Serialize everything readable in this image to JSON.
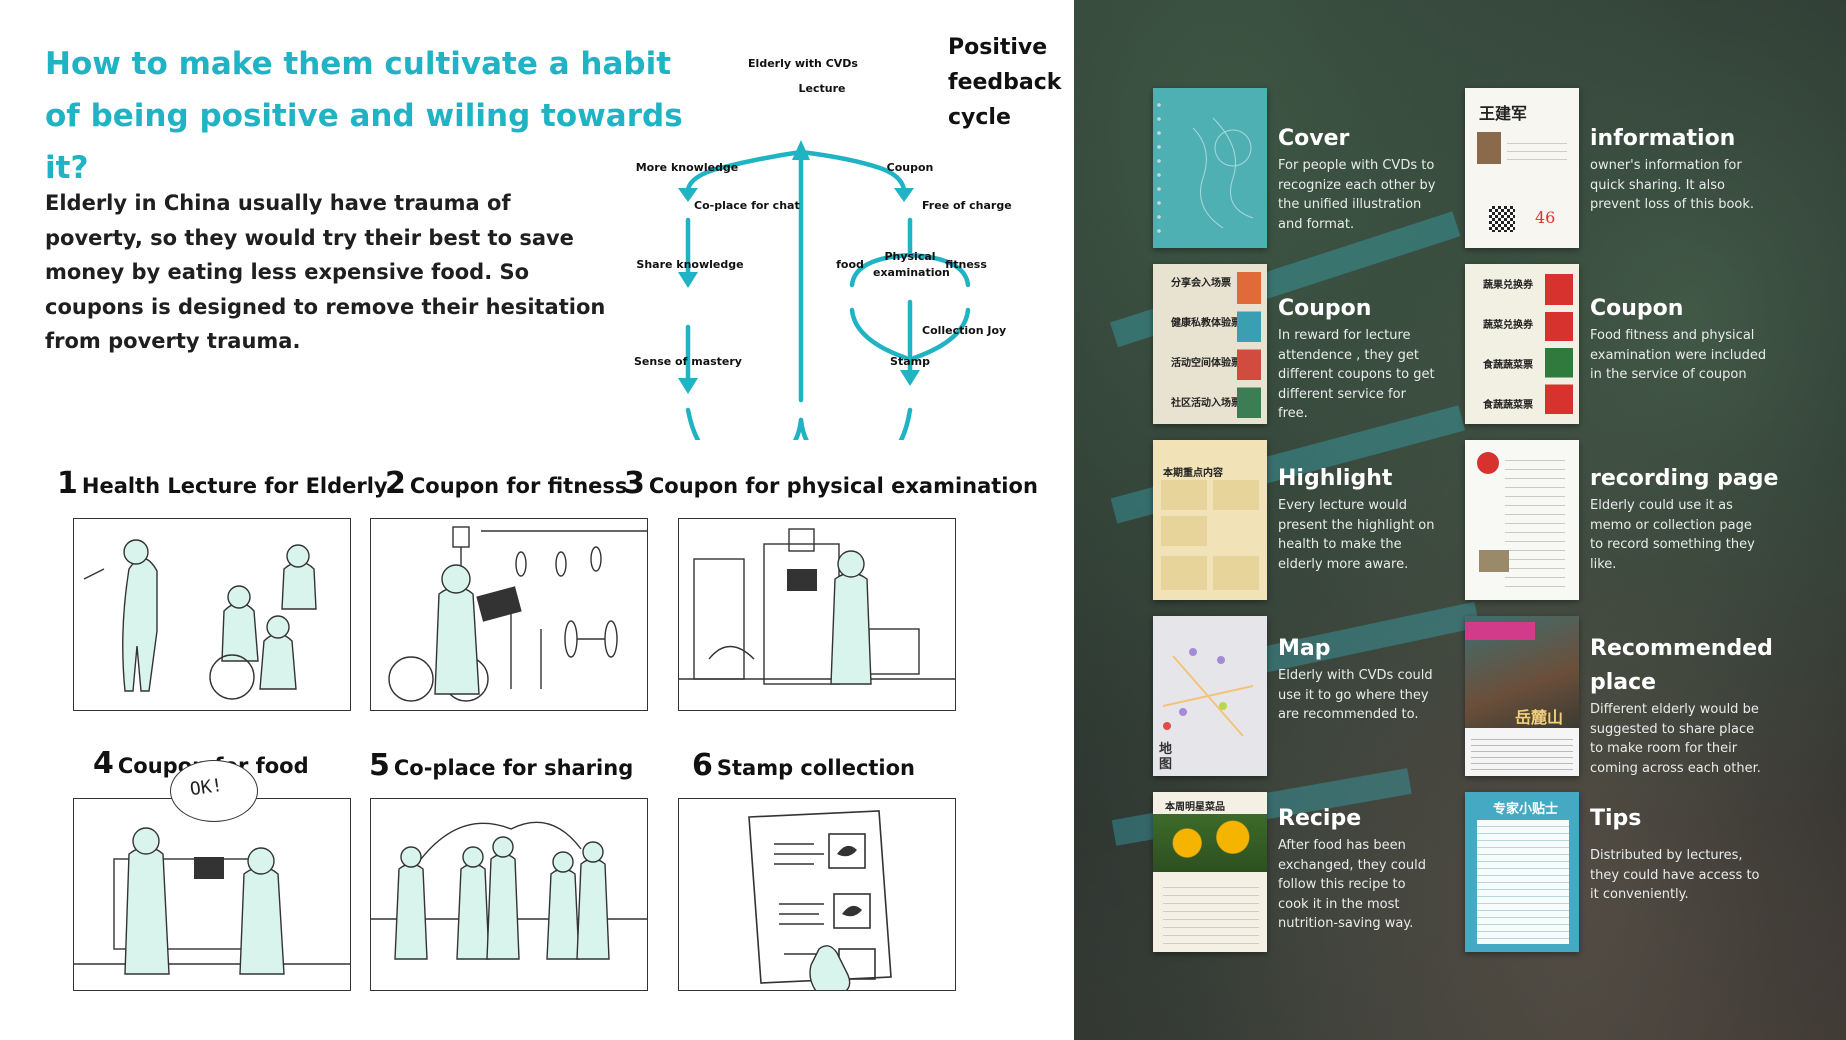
{
  "headline": "How to make them cultivate a habit of being positive and wiling towards it?",
  "intro": "Elderly in China usually have trauma of poverty, so they would try their best to save money by eating less expensive food. So coupons is designed to remove their hesitation from poverty trauma.",
  "diagram": {
    "title": "Positive feedback cycle",
    "nodes": {
      "root": "Elderly with CVDs",
      "lecture": "Lecture",
      "more_knowledge": "More knowledge",
      "co_place": "Co-place for chat",
      "share_knowledge": "Share knowledge",
      "mastery": "Sense of mastery",
      "coupon": "Coupon",
      "free": "Free of charge",
      "food": "food",
      "physical": "Physical examination",
      "fitness": "fitness",
      "joy": "Collection Joy",
      "stamp": "Stamp"
    }
  },
  "steps": [
    {
      "num": "1",
      "label": "Health Lecture for Elderly"
    },
    {
      "num": "2",
      "label": "Coupon for fitness"
    },
    {
      "num": "3",
      "label": "Coupon for physical examination"
    },
    {
      "num": "4",
      "label": "Coupon for food"
    },
    {
      "num": "5",
      "label": "Co-place for sharing"
    },
    {
      "num": "6",
      "label": "Stamp collection"
    }
  ],
  "speech_bubble": "OK!",
  "cards": [
    {
      "title": "Cover",
      "desc": "For people with CVDs to recognize each other by the unified illustration and format."
    },
    {
      "title": "information",
      "desc": "owner's information for quick sharing. It also prevent loss of this book."
    },
    {
      "title": "Coupon",
      "desc": "In reward for lecture attendence , they get different coupons to get different service for free."
    },
    {
      "title": "Coupon",
      "desc": "Food fitness and physical examination were included in the service of coupon"
    },
    {
      "title": "Highlight",
      "desc": "Every lecture would present the highlight on health to make the elderly more aware."
    },
    {
      "title": "recording page",
      "desc": "Elderly could use it as memo or collection page to record something they like."
    },
    {
      "title": "Map",
      "desc": "Elderly with CVDs could use it to go where they are recommended to."
    },
    {
      "title": "Recommended place",
      "desc": "Different elderly would be suggested to share place to make room for their coming across each other."
    },
    {
      "title": "Recipe",
      "desc": "After food has been exchanged, they could follow this recipe to cook it in the most nutrition-saving way."
    },
    {
      "title": "Tips",
      "desc": "Distributed by lectures, they could have access to it conveniently."
    }
  ],
  "thumbs": {
    "info_name": "王建军",
    "info_number": "46",
    "coupon_labels": [
      "分享会入场票",
      "健康私教体验票",
      "活动空间体验票",
      "社区活动入场票"
    ],
    "veg_labels": [
      "蔬果兑换券",
      "蔬菜兑换券",
      "食蔬蔬菜票",
      "食蔬蔬菜票"
    ],
    "highlight_head": "本期重点内容",
    "map_label": "地图",
    "place_name": "岳麓山",
    "recipe_title": "本周明星菜品",
    "tips_title": "专家小贴士"
  },
  "colors": {
    "accent": "#1fb3c4",
    "dark_bg": "#2a332f"
  }
}
